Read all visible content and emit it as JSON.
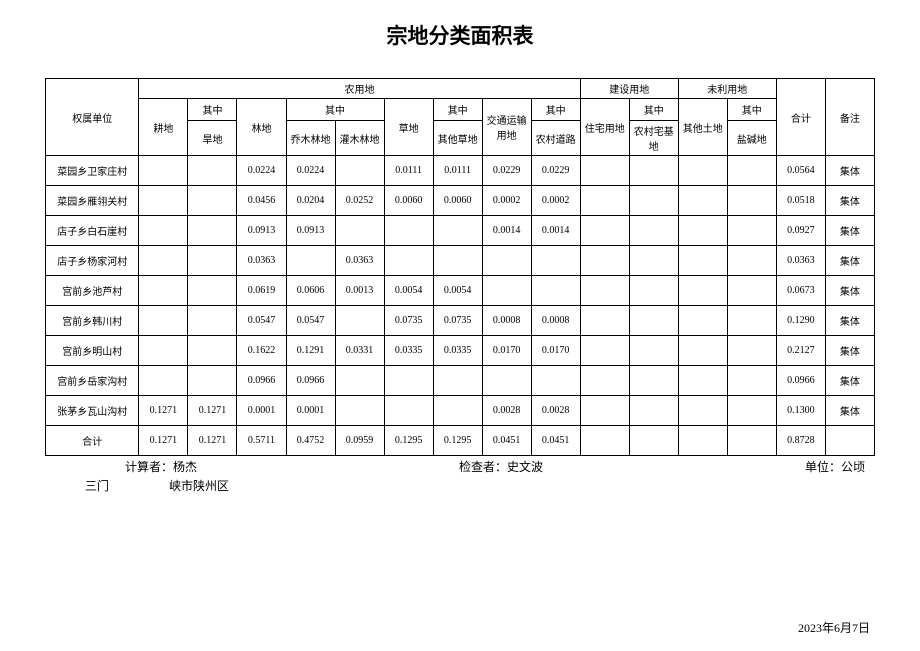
{
  "title": "宗地分类面积表",
  "headers": {
    "unit": "权属单位",
    "agri": "农用地",
    "construction": "建设用地",
    "unused": "未利用地",
    "total": "合计",
    "remark": "备注",
    "qizhong": "其中",
    "gengdi": "耕地",
    "handi": "旱地",
    "lindi": "林地",
    "qiaomu": "乔木林地",
    "guanmu": "灌木林地",
    "caodi": "草地",
    "qitacao": "其他草地",
    "jiaotong": "交通运输用地",
    "nongcundao": "农村道路",
    "zhuzhai": "住宅用地",
    "nongcunzhai": "农村宅基地",
    "qitatu": "其他土地",
    "yanjian": "盐碱地"
  },
  "rows": [
    {
      "label": "菜园乡卫家庄村",
      "gengdi": "",
      "handi": "",
      "lindi": "0.0224",
      "qiaomu": "0.0224",
      "guanmu": "",
      "caodi": "0.0111",
      "qitacao": "0.0111",
      "jiaotong": "0.0229",
      "nongcundao": "0.0229",
      "zhuzhai": "",
      "nongcunzhai": "",
      "qitatu": "",
      "yanjian": "",
      "heji": "0.0564",
      "remark": "集体"
    },
    {
      "label": "菜园乡雁翎关村",
      "gengdi": "",
      "handi": "",
      "lindi": "0.0456",
      "qiaomu": "0.0204",
      "guanmu": "0.0252",
      "caodi": "0.0060",
      "qitacao": "0.0060",
      "jiaotong": "0.0002",
      "nongcundao": "0.0002",
      "zhuzhai": "",
      "nongcunzhai": "",
      "qitatu": "",
      "yanjian": "",
      "heji": "0.0518",
      "remark": "集体"
    },
    {
      "label": "店子乡白石崖村",
      "gengdi": "",
      "handi": "",
      "lindi": "0.0913",
      "qiaomu": "0.0913",
      "guanmu": "",
      "caodi": "",
      "qitacao": "",
      "jiaotong": "0.0014",
      "nongcundao": "0.0014",
      "zhuzhai": "",
      "nongcunzhai": "",
      "qitatu": "",
      "yanjian": "",
      "heji": "0.0927",
      "remark": "集体"
    },
    {
      "label": "店子乡杨家河村",
      "gengdi": "",
      "handi": "",
      "lindi": "0.0363",
      "qiaomu": "",
      "guanmu": "0.0363",
      "caodi": "",
      "qitacao": "",
      "jiaotong": "",
      "nongcundao": "",
      "zhuzhai": "",
      "nongcunzhai": "",
      "qitatu": "",
      "yanjian": "",
      "heji": "0.0363",
      "remark": "集体"
    },
    {
      "label": "宫前乡池芦村",
      "gengdi": "",
      "handi": "",
      "lindi": "0.0619",
      "qiaomu": "0.0606",
      "guanmu": "0.0013",
      "caodi": "0.0054",
      "qitacao": "0.0054",
      "jiaotong": "",
      "nongcundao": "",
      "zhuzhai": "",
      "nongcunzhai": "",
      "qitatu": "",
      "yanjian": "",
      "heji": "0.0673",
      "remark": "集体"
    },
    {
      "label": "宫前乡韩川村",
      "gengdi": "",
      "handi": "",
      "lindi": "0.0547",
      "qiaomu": "0.0547",
      "guanmu": "",
      "caodi": "0.0735",
      "qitacao": "0.0735",
      "jiaotong": "0.0008",
      "nongcundao": "0.0008",
      "zhuzhai": "",
      "nongcunzhai": "",
      "qitatu": "",
      "yanjian": "",
      "heji": "0.1290",
      "remark": "集体"
    },
    {
      "label": "宫前乡明山村",
      "gengdi": "",
      "handi": "",
      "lindi": "0.1622",
      "qiaomu": "0.1291",
      "guanmu": "0.0331",
      "caodi": "0.0335",
      "qitacao": "0.0335",
      "jiaotong": "0.0170",
      "nongcundao": "0.0170",
      "zhuzhai": "",
      "nongcunzhai": "",
      "qitatu": "",
      "yanjian": "",
      "heji": "0.2127",
      "remark": "集体"
    },
    {
      "label": "宫前乡岳家沟村",
      "gengdi": "",
      "handi": "",
      "lindi": "0.0966",
      "qiaomu": "0.0966",
      "guanmu": "",
      "caodi": "",
      "qitacao": "",
      "jiaotong": "",
      "nongcundao": "",
      "zhuzhai": "",
      "nongcunzhai": "",
      "qitatu": "",
      "yanjian": "",
      "heji": "0.0966",
      "remark": "集体"
    },
    {
      "label": "张茅乡瓦山沟村",
      "gengdi": "0.1271",
      "handi": "0.1271",
      "lindi": "0.0001",
      "qiaomu": "0.0001",
      "guanmu": "",
      "caodi": "",
      "qitacao": "",
      "jiaotong": "0.0028",
      "nongcundao": "0.0028",
      "zhuzhai": "",
      "nongcunzhai": "",
      "qitatu": "",
      "yanjian": "",
      "heji": "0.1300",
      "remark": "集体"
    },
    {
      "label": "合计",
      "gengdi": "0.1271",
      "handi": "0.1271",
      "lindi": "0.5711",
      "qiaomu": "0.4752",
      "guanmu": "0.0959",
      "caodi": "0.1295",
      "qitacao": "0.1295",
      "jiaotong": "0.0451",
      "nongcundao": "0.0451",
      "zhuzhai": "",
      "nongcunzhai": "",
      "qitatu": "",
      "yanjian": "",
      "heji": "0.8728",
      "remark": ""
    }
  ],
  "footer": {
    "calc_label": "计算者：",
    "calc_name": "杨杰",
    "check_label": "检查者：",
    "check_name": "史文波",
    "unit_label": "单位：公顷",
    "region1": "三门",
    "region2": "峡市陕州区",
    "date": "2023年6月7日"
  }
}
